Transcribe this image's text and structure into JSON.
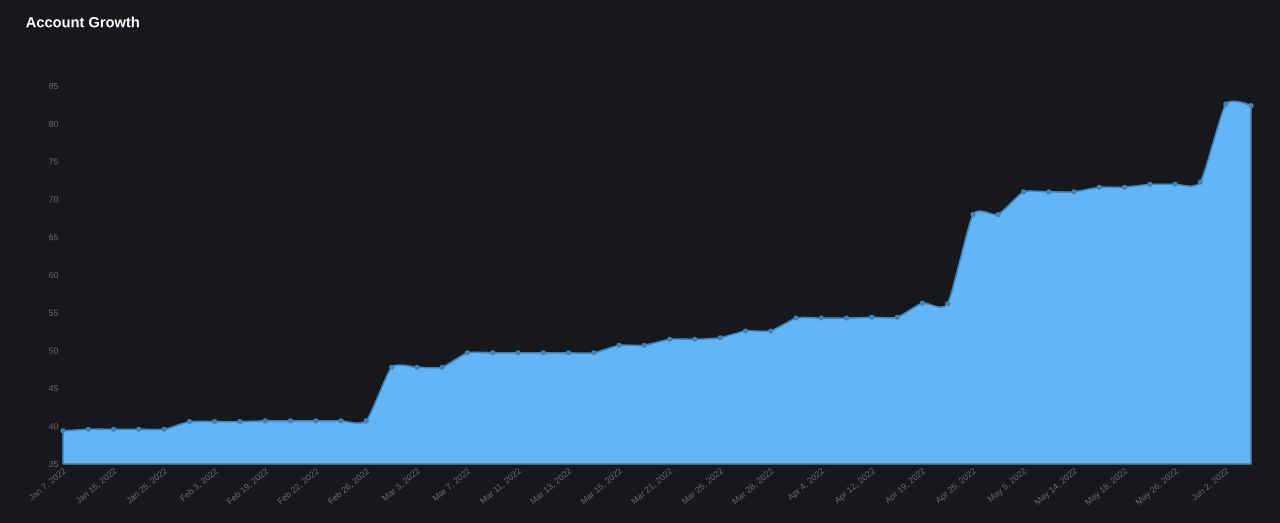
{
  "chart_data": {
    "type": "area",
    "title": "Account Growth",
    "categories": [
      "Jan 7, 2022",
      null,
      "Jan 15, 2022",
      null,
      "Jan 25, 2022",
      null,
      "Feb 3, 2022",
      null,
      "Feb 19, 2022",
      null,
      "Feb 22, 2022",
      null,
      "Feb 26, 2022",
      null,
      "Mar 3, 2022",
      null,
      "Mar 7, 2022",
      null,
      "Mar 11, 2022",
      null,
      "Mar 13, 2022",
      null,
      "Mar 15, 2022",
      null,
      "Mar 21, 2022",
      null,
      "Mar 25, 2022",
      null,
      "Mar 28, 2022",
      null,
      "Apr 4, 2022",
      null,
      "Apr 12, 2022",
      null,
      "Apr 19, 2022",
      null,
      "Apr 25, 2022",
      null,
      "May 5, 2022",
      null,
      "May 14, 2022",
      null,
      "May 18, 2022",
      null,
      "May 26, 2022",
      null,
      "Jun 2, 2022",
      null
    ],
    "values": [
      39.4,
      39.6,
      39.6,
      39.6,
      39.6,
      40.6,
      40.6,
      40.6,
      40.7,
      40.7,
      40.7,
      40.7,
      40.7,
      47.8,
      47.8,
      47.8,
      49.7,
      49.7,
      49.7,
      49.7,
      49.7,
      49.7,
      50.7,
      50.7,
      51.5,
      51.5,
      51.7,
      52.6,
      52.6,
      54.3,
      54.3,
      54.3,
      54.4,
      54.4,
      56.3,
      56.2,
      68.0,
      68.0,
      71.0,
      71.0,
      71.0,
      71.6,
      71.6,
      72.0,
      72.0,
      72.3,
      82.6,
      82.4
    ],
    "color": "#64b5f6",
    "ylim": [
      35,
      85
    ],
    "yticks": [
      35,
      40,
      45,
      50,
      55,
      60,
      65,
      70,
      75,
      80,
      85
    ],
    "grid": false,
    "marker": "circle",
    "line_style": "solid"
  }
}
